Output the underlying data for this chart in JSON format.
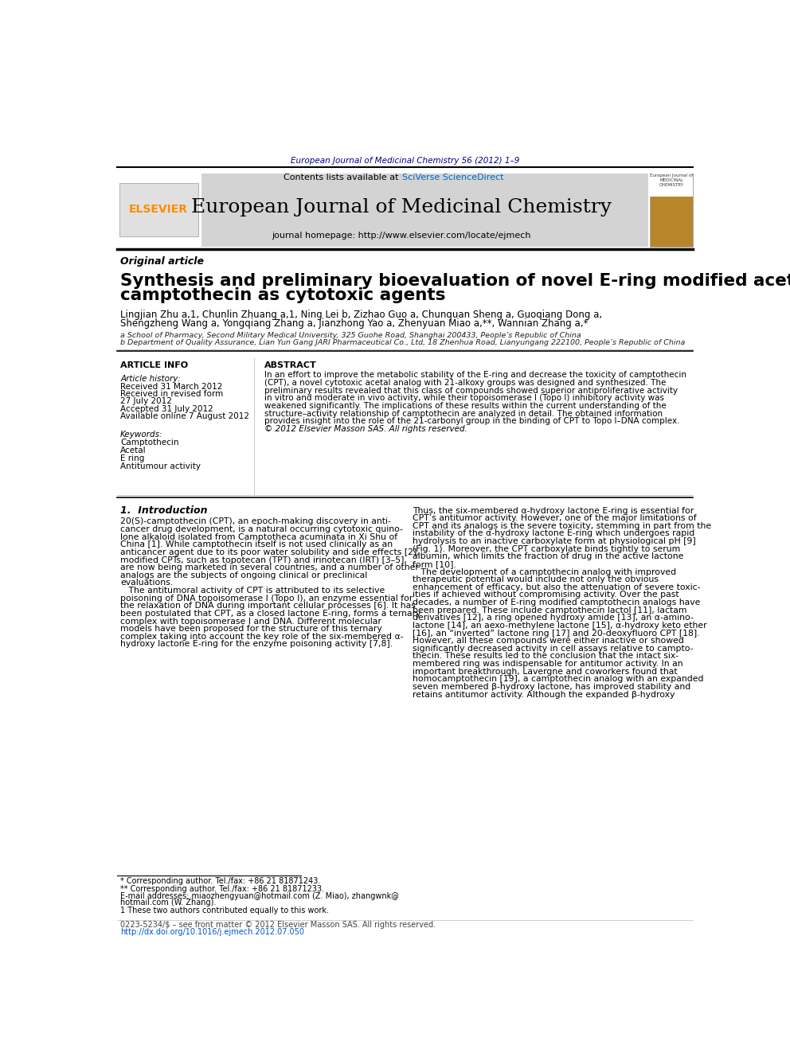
{
  "page_bg": "#ffffff",
  "top_journal_line": "European Journal of Medicinal Chemistry 56 (2012) 1–9",
  "top_journal_color": "#00008B",
  "header_bg": "#d3d3d3",
  "header_title": "European Journal of Medicinal Chemistry",
  "header_contents": "Contents lists available at ",
  "header_sciverse": "SciVerse ScienceDirect",
  "header_homepage": "journal homepage: http://www.elsevier.com/locate/ejmech",
  "elsevier_color": "#FF8C00",
  "article_type": "Original article",
  "paper_title_line1": "Synthesis and preliminary bioevaluation of novel E-ring modified acetal analog of",
  "paper_title_line2": "camptothecin as cytotoxic agents",
  "authors": "Lingjian Zhu a,1, Chunlin Zhuang a,1, Ning Lei b, Zizhao Guo a, Chunquan Sheng a, Guoqiang Dong a,",
  "authors2": "Shengzheng Wang a, Yongqiang Zhang a, Jianzhong Yao a, Zhenyuan Miao a,**, Wannian Zhang a,*",
  "affil_a": "a School of Pharmacy, Second Military Medical University, 325 Guohe Road, Shanghai 200433, People’s Republic of China",
  "affil_b": "b Department of Quality Assurance, Lian Yun Gang JARI Pharmaceutical Co., Ltd, 18 Zhenhua Road, Lianyungang 222100, People’s Republic of China",
  "article_info_title": "ARTICLE INFO",
  "article_history_label": "Article history:",
  "received": "Received 31 March 2012",
  "received_revised": "Received in revised form",
  "revised_date": "27 July 2012",
  "accepted": "Accepted 31 July 2012",
  "available": "Available online 7 August 2012",
  "keywords_label": "Keywords:",
  "keywords": [
    "Camptothecin",
    "Acetal",
    "E ring",
    "Antitumour activity"
  ],
  "abstract_title": "ABSTRACT",
  "abstract_lines": [
    "In an effort to improve the metabolic stability of the E-ring and decrease the toxicity of camptothecin",
    "(CPT), a novel cytotoxic acetal analog with 21-alkoxy groups was designed and synthesized. The",
    "preliminary results revealed that this class of compounds showed superior antiproliferative activity",
    "in vitro and moderate in vivo activity, while their topoisomerase I (Topo I) inhibitory activity was",
    "weakened significantly. The implications of these results within the current understanding of the",
    "structure–activity relationship of camptothecin are analyzed in detail. The obtained information",
    "provides insight into the role of the 21-carbonyl group in the binding of CPT to Topo I–DNA complex.",
    "© 2012 Elsevier Masson SAS. All rights reserved."
  ],
  "intro_title": "1.  Introduction",
  "intro_col1_lines": [
    "20(S)-camptothecin (CPT), an epoch-making discovery in anti-",
    "cancer drug development, is a natural occurring cytotoxic quino-",
    "lone alkaloid isolated from Camptotheca acuminata in Xi Shu of",
    "China [1]. While camptothecin itself is not used clinically as an",
    "anticancer agent due to its poor water solubility and side effects [2],",
    "modified CPTs, such as topotecan (TPT) and irinotecan (IRT) [3–5],",
    "are now being marketed in several countries, and a number of other",
    "analogs are the subjects of ongoing clinical or preclinical",
    "evaluations.",
    "   The antitumoral activity of CPT is attributed to its selective",
    "poisoning of DNA topoisomerase I (Topo I), an enzyme essential for",
    "the relaxation of DNA during important cellular processes [6]. It has",
    "been postulated that CPT, as a closed lactone E-ring, forms a ternary",
    "complex with topoisomerase I and DNA. Different molecular",
    "models have been proposed for the structure of this ternary",
    "complex taking into account the key role of the six-membered α-",
    "hydroxy lactone E-ring for the enzyme poisoning activity [7,8]."
  ],
  "intro_col2_lines": [
    "Thus, the six-membered α-hydroxy lactone E-ring is essential for",
    "CPT’s antitumor activity. However, one of the major limitations of",
    "CPT and its analogs is the severe toxicity, stemming in part from the",
    "instability of the α-hydroxy lactone E-ring which undergoes rapid",
    "hydrolysis to an inactive carboxylate form at physiological pH [9]",
    "(Fig. 1). Moreover, the CPT carboxylate binds tightly to serum",
    "albumin, which limits the fraction of drug in the active lactone",
    "form [10].",
    "   The development of a camptothecin analog with improved",
    "therapeutic potential would include not only the obvious",
    "enhancement of efficacy, but also the attenuation of severe toxic-",
    "ities if achieved without compromising activity. Over the past",
    "decades, a number of E-ring modified camptothecin analogs have",
    "been prepared. These include camptothecin lactol [11], lactam",
    "derivatives [12], a ring opened hydroxy amide [13], an α-amino-",
    "lactone [14], an aexo-methylene lactone [15], α-hydroxy keto ether",
    "[16], an “inverted” lactone ring [17] and 20-deoxyfluoro CPT [18].",
    "However, all these compounds were either inactive or showed",
    "significantly decreased activity in cell assays relative to campto-",
    "thecin. These results led to the conclusion that the intact six-",
    "membered ring was indispensable for antitumor activity. In an",
    "important breakthrough, Lavergne and coworkers found that",
    "homocamptothecin [19], a camptothecin analog with an expanded",
    "seven membered β-hydroxy lactone, has improved stability and",
    "retains antitumor activity. Although the expanded β-hydroxy"
  ],
  "footnote1": "* Corresponding author. Tel./fax: +86 21 81871243.",
  "footnote2": "** Corresponding author. Tel./fax: +86 21 81871233.",
  "footnote3a": "E-mail addresses: miaozhengyuan@hotmail.com (Z. Miao), zhangwnk@",
  "footnote3b": "hotmail.com (W. Zhang).",
  "footnote4": "1 These two authors contributed equally to this work.",
  "bottom_line1": "0223-5234/$ – see front matter © 2012 Elsevier Masson SAS. All rights reserved.",
  "bottom_line2": "http://dx.doi.org/10.1016/j.ejmech.2012.07.050"
}
